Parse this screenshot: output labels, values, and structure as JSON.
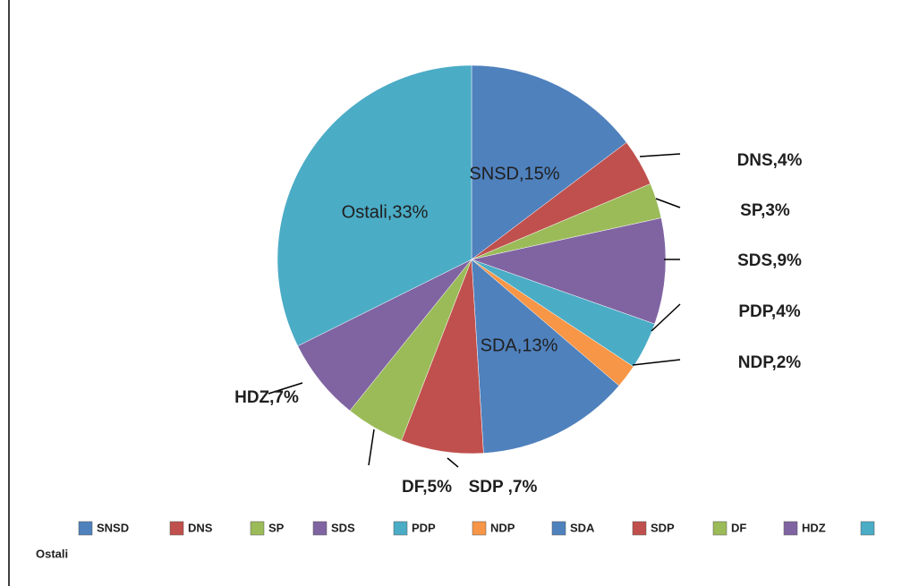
{
  "chart_data": {
    "type": "pie",
    "categories": [
      "SNSD",
      "DNS",
      "SP",
      "SDS",
      "PDP",
      "NDP",
      "SDA",
      "SDP",
      "DF",
      "HDZ",
      "Ostali"
    ],
    "values": [
      15,
      4,
      3,
      9,
      4,
      2,
      13,
      7,
      5,
      7,
      33
    ],
    "value_labels": [
      "SNSD,15%",
      "DNS,4%",
      "SP,3%",
      "SDS,9%",
      "PDP,4%",
      "NDP,2%",
      "SDA,13%",
      "SDP ,7%",
      "DF,5%",
      "HDZ,7%",
      "Ostali,33%"
    ],
    "colors": [
      "#4f81bd",
      "#c0504d",
      "#9bbb59",
      "#8064a2",
      "#4bacc6",
      "#f79646",
      "#4f81bd",
      "#c0504d",
      "#9bbb59",
      "#8064a2",
      "#4bacc6"
    ],
    "legend": "bottom"
  }
}
